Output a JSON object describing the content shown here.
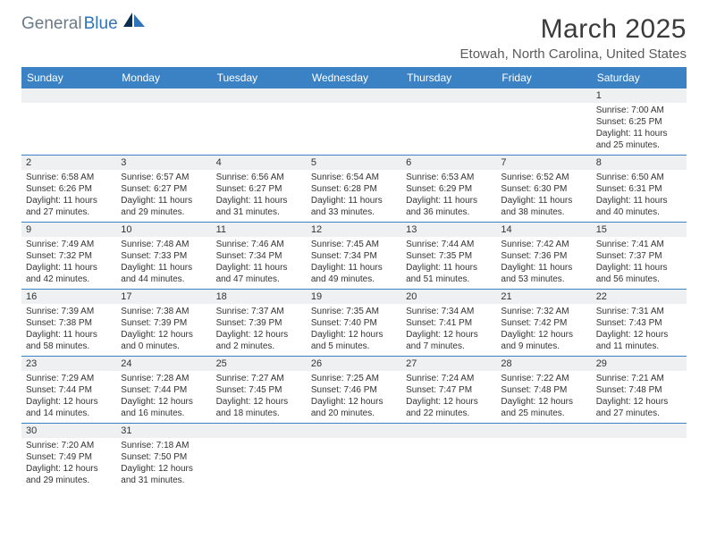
{
  "logo": {
    "gray": "General",
    "blue": "Blue"
  },
  "title": "March 2025",
  "location": "Etowah, North Carolina, United States",
  "colors": {
    "header_bg": "#3b82c4",
    "header_fg": "#ffffff",
    "daynum_bg": "#eef0f2",
    "border": "#3b82c4",
    "logo_gray": "#6b7a86",
    "logo_blue": "#2f73b8"
  },
  "day_headers": [
    "Sunday",
    "Monday",
    "Tuesday",
    "Wednesday",
    "Thursday",
    "Friday",
    "Saturday"
  ],
  "weeks": [
    [
      {
        "num": "",
        "lines": []
      },
      {
        "num": "",
        "lines": []
      },
      {
        "num": "",
        "lines": []
      },
      {
        "num": "",
        "lines": []
      },
      {
        "num": "",
        "lines": []
      },
      {
        "num": "",
        "lines": []
      },
      {
        "num": "1",
        "lines": [
          "Sunrise: 7:00 AM",
          "Sunset: 6:25 PM",
          "Daylight: 11 hours and 25 minutes."
        ]
      }
    ],
    [
      {
        "num": "2",
        "lines": [
          "Sunrise: 6:58 AM",
          "Sunset: 6:26 PM",
          "Daylight: 11 hours and 27 minutes."
        ]
      },
      {
        "num": "3",
        "lines": [
          "Sunrise: 6:57 AM",
          "Sunset: 6:27 PM",
          "Daylight: 11 hours and 29 minutes."
        ]
      },
      {
        "num": "4",
        "lines": [
          "Sunrise: 6:56 AM",
          "Sunset: 6:27 PM",
          "Daylight: 11 hours and 31 minutes."
        ]
      },
      {
        "num": "5",
        "lines": [
          "Sunrise: 6:54 AM",
          "Sunset: 6:28 PM",
          "Daylight: 11 hours and 33 minutes."
        ]
      },
      {
        "num": "6",
        "lines": [
          "Sunrise: 6:53 AM",
          "Sunset: 6:29 PM",
          "Daylight: 11 hours and 36 minutes."
        ]
      },
      {
        "num": "7",
        "lines": [
          "Sunrise: 6:52 AM",
          "Sunset: 6:30 PM",
          "Daylight: 11 hours and 38 minutes."
        ]
      },
      {
        "num": "8",
        "lines": [
          "Sunrise: 6:50 AM",
          "Sunset: 6:31 PM",
          "Daylight: 11 hours and 40 minutes."
        ]
      }
    ],
    [
      {
        "num": "9",
        "lines": [
          "Sunrise: 7:49 AM",
          "Sunset: 7:32 PM",
          "Daylight: 11 hours and 42 minutes."
        ]
      },
      {
        "num": "10",
        "lines": [
          "Sunrise: 7:48 AM",
          "Sunset: 7:33 PM",
          "Daylight: 11 hours and 44 minutes."
        ]
      },
      {
        "num": "11",
        "lines": [
          "Sunrise: 7:46 AM",
          "Sunset: 7:34 PM",
          "Daylight: 11 hours and 47 minutes."
        ]
      },
      {
        "num": "12",
        "lines": [
          "Sunrise: 7:45 AM",
          "Sunset: 7:34 PM",
          "Daylight: 11 hours and 49 minutes."
        ]
      },
      {
        "num": "13",
        "lines": [
          "Sunrise: 7:44 AM",
          "Sunset: 7:35 PM",
          "Daylight: 11 hours and 51 minutes."
        ]
      },
      {
        "num": "14",
        "lines": [
          "Sunrise: 7:42 AM",
          "Sunset: 7:36 PM",
          "Daylight: 11 hours and 53 minutes."
        ]
      },
      {
        "num": "15",
        "lines": [
          "Sunrise: 7:41 AM",
          "Sunset: 7:37 PM",
          "Daylight: 11 hours and 56 minutes."
        ]
      }
    ],
    [
      {
        "num": "16",
        "lines": [
          "Sunrise: 7:39 AM",
          "Sunset: 7:38 PM",
          "Daylight: 11 hours and 58 minutes."
        ]
      },
      {
        "num": "17",
        "lines": [
          "Sunrise: 7:38 AM",
          "Sunset: 7:39 PM",
          "Daylight: 12 hours and 0 minutes."
        ]
      },
      {
        "num": "18",
        "lines": [
          "Sunrise: 7:37 AM",
          "Sunset: 7:39 PM",
          "Daylight: 12 hours and 2 minutes."
        ]
      },
      {
        "num": "19",
        "lines": [
          "Sunrise: 7:35 AM",
          "Sunset: 7:40 PM",
          "Daylight: 12 hours and 5 minutes."
        ]
      },
      {
        "num": "20",
        "lines": [
          "Sunrise: 7:34 AM",
          "Sunset: 7:41 PM",
          "Daylight: 12 hours and 7 minutes."
        ]
      },
      {
        "num": "21",
        "lines": [
          "Sunrise: 7:32 AM",
          "Sunset: 7:42 PM",
          "Daylight: 12 hours and 9 minutes."
        ]
      },
      {
        "num": "22",
        "lines": [
          "Sunrise: 7:31 AM",
          "Sunset: 7:43 PM",
          "Daylight: 12 hours and 11 minutes."
        ]
      }
    ],
    [
      {
        "num": "23",
        "lines": [
          "Sunrise: 7:29 AM",
          "Sunset: 7:44 PM",
          "Daylight: 12 hours and 14 minutes."
        ]
      },
      {
        "num": "24",
        "lines": [
          "Sunrise: 7:28 AM",
          "Sunset: 7:44 PM",
          "Daylight: 12 hours and 16 minutes."
        ]
      },
      {
        "num": "25",
        "lines": [
          "Sunrise: 7:27 AM",
          "Sunset: 7:45 PM",
          "Daylight: 12 hours and 18 minutes."
        ]
      },
      {
        "num": "26",
        "lines": [
          "Sunrise: 7:25 AM",
          "Sunset: 7:46 PM",
          "Daylight: 12 hours and 20 minutes."
        ]
      },
      {
        "num": "27",
        "lines": [
          "Sunrise: 7:24 AM",
          "Sunset: 7:47 PM",
          "Daylight: 12 hours and 22 minutes."
        ]
      },
      {
        "num": "28",
        "lines": [
          "Sunrise: 7:22 AM",
          "Sunset: 7:48 PM",
          "Daylight: 12 hours and 25 minutes."
        ]
      },
      {
        "num": "29",
        "lines": [
          "Sunrise: 7:21 AM",
          "Sunset: 7:48 PM",
          "Daylight: 12 hours and 27 minutes."
        ]
      }
    ],
    [
      {
        "num": "30",
        "lines": [
          "Sunrise: 7:20 AM",
          "Sunset: 7:49 PM",
          "Daylight: 12 hours and 29 minutes."
        ]
      },
      {
        "num": "31",
        "lines": [
          "Sunrise: 7:18 AM",
          "Sunset: 7:50 PM",
          "Daylight: 12 hours and 31 minutes."
        ]
      },
      {
        "num": "",
        "lines": []
      },
      {
        "num": "",
        "lines": []
      },
      {
        "num": "",
        "lines": []
      },
      {
        "num": "",
        "lines": []
      },
      {
        "num": "",
        "lines": []
      }
    ]
  ]
}
